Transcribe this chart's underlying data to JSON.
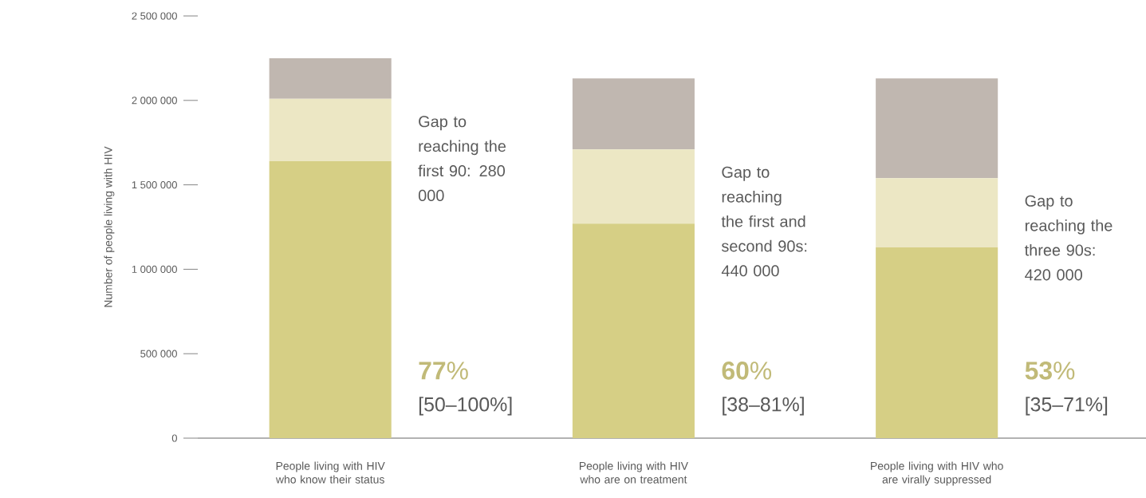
{
  "chart_data": {
    "type": "bar",
    "stacked": true,
    "ylabel": "Number of people living with HIV",
    "categories": [
      "People living with HIV who know their status",
      "People living with HIV who are on treatment",
      "People living with HIV who are virally suppressed"
    ],
    "series": [
      {
        "color": "#d6cf85",
        "values": [
          1640000,
          1270000,
          1130000
        ]
      },
      {
        "color": "#ece7c4",
        "values": [
          370000,
          440000,
          410000
        ]
      },
      {
        "color": "#c0b7b0",
        "values": [
          240000,
          420000,
          590000
        ]
      }
    ],
    "ylim": [
      0,
      2500000
    ],
    "yticks": [
      {
        "value": 0,
        "label": "0"
      },
      {
        "value": 500000,
        "label": "500 000"
      },
      {
        "value": 1000000,
        "label": "1 000 000"
      },
      {
        "value": 1500000,
        "label": "1 500 000"
      },
      {
        "value": 2000000,
        "label": "2 000 000"
      },
      {
        "value": 2500000,
        "label": "2 500 000"
      }
    ],
    "grid": false,
    "annotations": [
      "Gap to reaching the first 90: 280 000",
      "Gap to reaching the first and second 90s: 440 000",
      "Gap to reaching the three 90s: 420 000",
      "**77**%",
      "**60**%",
      "**53**%",
      "[50–100%]",
      "[38–81%]",
      "[35–71%]"
    ]
  }
}
